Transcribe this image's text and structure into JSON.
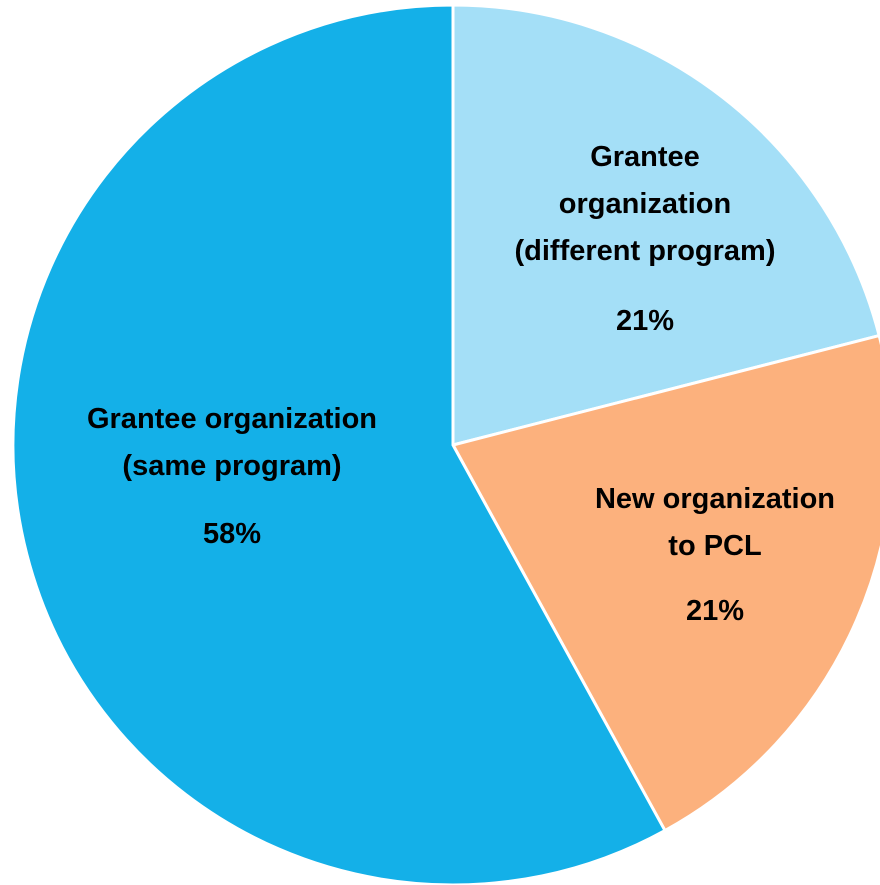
{
  "chart_data": {
    "type": "pie",
    "categories": [
      "Grantee organization (different program)",
      "New organization to PCL",
      "Grantee organization (same program)"
    ],
    "values": [
      21,
      21,
      58
    ],
    "value_labels": [
      "21%",
      "21%",
      "58%"
    ],
    "colors": [
      "#a4dff7",
      "#fcb17d",
      "#14b0e8"
    ]
  }
}
